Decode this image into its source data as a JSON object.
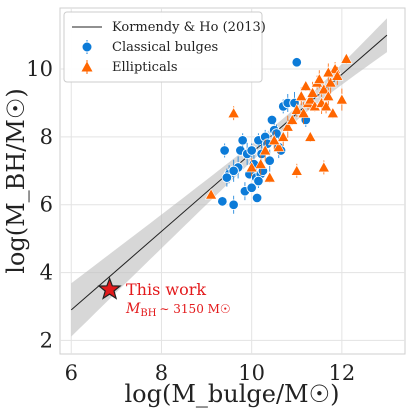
{
  "chart_data": {
    "type": "scatter",
    "xlabel": "log(M_bulge/M☉)",
    "ylabel": "log(M_BH/M☉)",
    "xlim": [
      5.75,
      13.4
    ],
    "ylim": [
      1.6,
      11.8
    ],
    "xticks": [
      6,
      8,
      10,
      12
    ],
    "yticks": [
      2,
      4,
      6,
      8,
      10
    ],
    "grid": true,
    "legend": {
      "placement": "top-left",
      "entries": [
        "Kormendy & Ho (2013)",
        "Classical bulges",
        "Ellipticals"
      ]
    },
    "relation": {
      "name": "Kormendy & Ho (2013)",
      "x": [
        6,
        13
      ],
      "y": [
        2.9,
        11.0
      ],
      "band_lower": [
        2.15,
        10.5
      ],
      "band_upper": [
        3.72,
        11.5
      ],
      "pivot": [
        11.0,
        8.7
      ],
      "band_halfwidth_pivot": 0.2
    },
    "series": [
      {
        "name": "Classical bulges",
        "color": "#0c7bd8",
        "marker": "circle",
        "x": [
          9.35,
          9.4,
          9.6,
          9.7,
          9.75,
          9.8,
          9.85,
          9.9,
          9.95,
          10.0,
          10.05,
          10.1,
          10.12,
          10.15,
          10.2,
          10.22,
          10.25,
          10.3,
          10.35,
          10.4,
          10.45,
          10.5,
          10.55,
          10.6,
          10.65,
          10.7,
          10.8,
          10.95,
          11.0,
          11.2,
          9.5,
          9.6,
          10.0,
          10.15,
          9.45
        ],
        "y": [
          6.1,
          7.6,
          6.0,
          7.1,
          7.6,
          7.9,
          6.4,
          7.5,
          6.9,
          7.6,
          7.2,
          6.8,
          6.2,
          7.9,
          6.9,
          7.5,
          7.0,
          8.0,
          7.8,
          7.3,
          8.5,
          8.2,
          8.1,
          7.7,
          7.6,
          8.9,
          9.0,
          9.0,
          10.2,
          8.5,
          6.9,
          7.0,
          6.5,
          6.7,
          6.8
        ]
      },
      {
        "name": "Ellipticals",
        "color": "#ff6600",
        "marker": "triangle",
        "x": [
          9.1,
          9.6,
          10.0,
          10.2,
          10.4,
          10.6,
          10.7,
          10.8,
          10.9,
          11.0,
          11.1,
          11.15,
          11.2,
          11.25,
          11.3,
          11.35,
          11.4,
          11.45,
          11.5,
          11.55,
          11.6,
          11.65,
          11.7,
          11.75,
          11.8,
          11.85,
          11.9,
          12.0,
          12.1,
          11.0,
          10.5,
          10.3,
          11.3,
          11.6,
          11.7
        ],
        "y": [
          6.3,
          8.7,
          7.1,
          7.2,
          6.8,
          7.7,
          8.0,
          8.3,
          8.5,
          8.8,
          9.2,
          8.7,
          9.5,
          9.0,
          9.1,
          9.3,
          8.9,
          9.6,
          9.7,
          9.0,
          9.4,
          8.9,
          9.2,
          9.6,
          8.7,
          10.0,
          9.8,
          9.1,
          10.3,
          7.0,
          7.9,
          7.6,
          8.0,
          7.1,
          9.9
        ]
      }
    ],
    "highlight": {
      "label": "This work",
      "x": 6.85,
      "y": 3.5,
      "color": "#e31a1c",
      "annotation_prefix": "M",
      "annotation_sub": "BH",
      "annotation_suffix": "∼ 3150 M☉"
    }
  }
}
